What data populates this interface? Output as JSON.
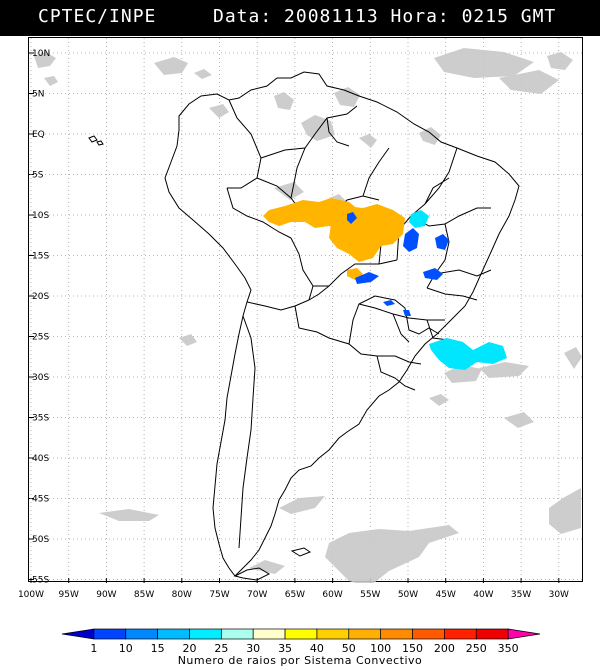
{
  "header": {
    "source": "CPTEC/INPE",
    "datetime": "Data: 20081113 Hora: 0215 GMT"
  },
  "map": {
    "lat_ticks": [
      "10N",
      "5N",
      "EQ",
      "5S",
      "10S",
      "15S",
      "20S",
      "25S",
      "30S",
      "35S",
      "40S",
      "45S",
      "50S",
      "55S"
    ],
    "lon_ticks": [
      "100W",
      "95W",
      "90W",
      "85W",
      "80W",
      "75W",
      "70W",
      "65W",
      "60W",
      "55W",
      "50W",
      "45W",
      "40W",
      "35W",
      "30W"
    ],
    "colors": {
      "land_outline": "#000000",
      "graticule": "#a0a0a0",
      "cloud": "#c8c8c8",
      "storm_orange": "#ffb400",
      "storm_blue": "#0050ff",
      "storm_cyan": "#00e6ff"
    }
  },
  "legend": {
    "title": "Numero de raios por Sistema Convectivo",
    "labels": [
      "1",
      "10",
      "15",
      "20",
      "25",
      "30",
      "35",
      "40",
      "50",
      "100",
      "150",
      "200",
      "250",
      "350"
    ],
    "colors": [
      "#0000cc",
      "#0044ff",
      "#0088ff",
      "#00bbff",
      "#00eeff",
      "#aaffee",
      "#ffffcc",
      "#ffff00",
      "#ffd000",
      "#ffb000",
      "#ff8c00",
      "#ff5a00",
      "#ff2000",
      "#ee0000",
      "#ff00aa"
    ]
  }
}
